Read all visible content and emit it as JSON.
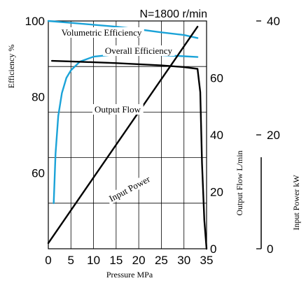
{
  "chart_data": {
    "type": "line",
    "title": "N=1800 r/min",
    "xlabel": "Pressure  MPa",
    "x_ticks": [
      "0",
      "5",
      "10",
      "15",
      "20",
      "25",
      "30",
      "35"
    ],
    "xlim": [
      0,
      35
    ],
    "axes": [
      {
        "label": "Efficiency  %",
        "ticks": [
          "100",
          "80",
          "60"
        ],
        "range": [
          40,
          100
        ]
      },
      {
        "label": "Output Flow  L/min",
        "ticks": [
          "60",
          "40",
          "20",
          "0"
        ],
        "range": [
          0,
          80
        ]
      },
      {
        "label": "Input Power  kW",
        "ticks": [
          "40",
          "20",
          "0"
        ],
        "range": [
          0,
          40
        ]
      }
    ],
    "grid": true,
    "series": [
      {
        "name": "Volumetric Efficiency",
        "axis": "Efficiency  %",
        "color": "#1ba3d8",
        "x": [
          0,
          5,
          10,
          15,
          20,
          25,
          30,
          33
        ],
        "y": [
          100,
          99.5,
          99,
          98.5,
          97.8,
          97,
          96.3,
          95.5
        ]
      },
      {
        "name": "Overall Efficiency",
        "axis": "Efficiency  %",
        "color": "#1ba3d8",
        "x": [
          1.2,
          1.6,
          2.2,
          3,
          4,
          5,
          7,
          10,
          15,
          20,
          25,
          30,
          33
        ],
        "y": [
          52,
          65,
          75,
          81,
          85,
          87,
          89.3,
          90.6,
          91.2,
          91.2,
          91,
          90.7,
          90.5
        ]
      },
      {
        "name": "Output Flow",
        "axis": "Output Flow  L/min",
        "color": "#000000",
        "x": [
          0.8,
          5,
          10,
          15,
          20,
          25,
          30,
          33,
          33.6,
          34,
          34.5,
          35
        ],
        "y": [
          66,
          65.8,
          65.5,
          65.2,
          64.8,
          64.4,
          63.8,
          63.2,
          55,
          30,
          10,
          0
        ]
      },
      {
        "name": "Input Power",
        "axis": "Input Power  kW",
        "color": "#000000",
        "x": [
          0,
          33
        ],
        "y": [
          1,
          39
        ]
      }
    ]
  }
}
